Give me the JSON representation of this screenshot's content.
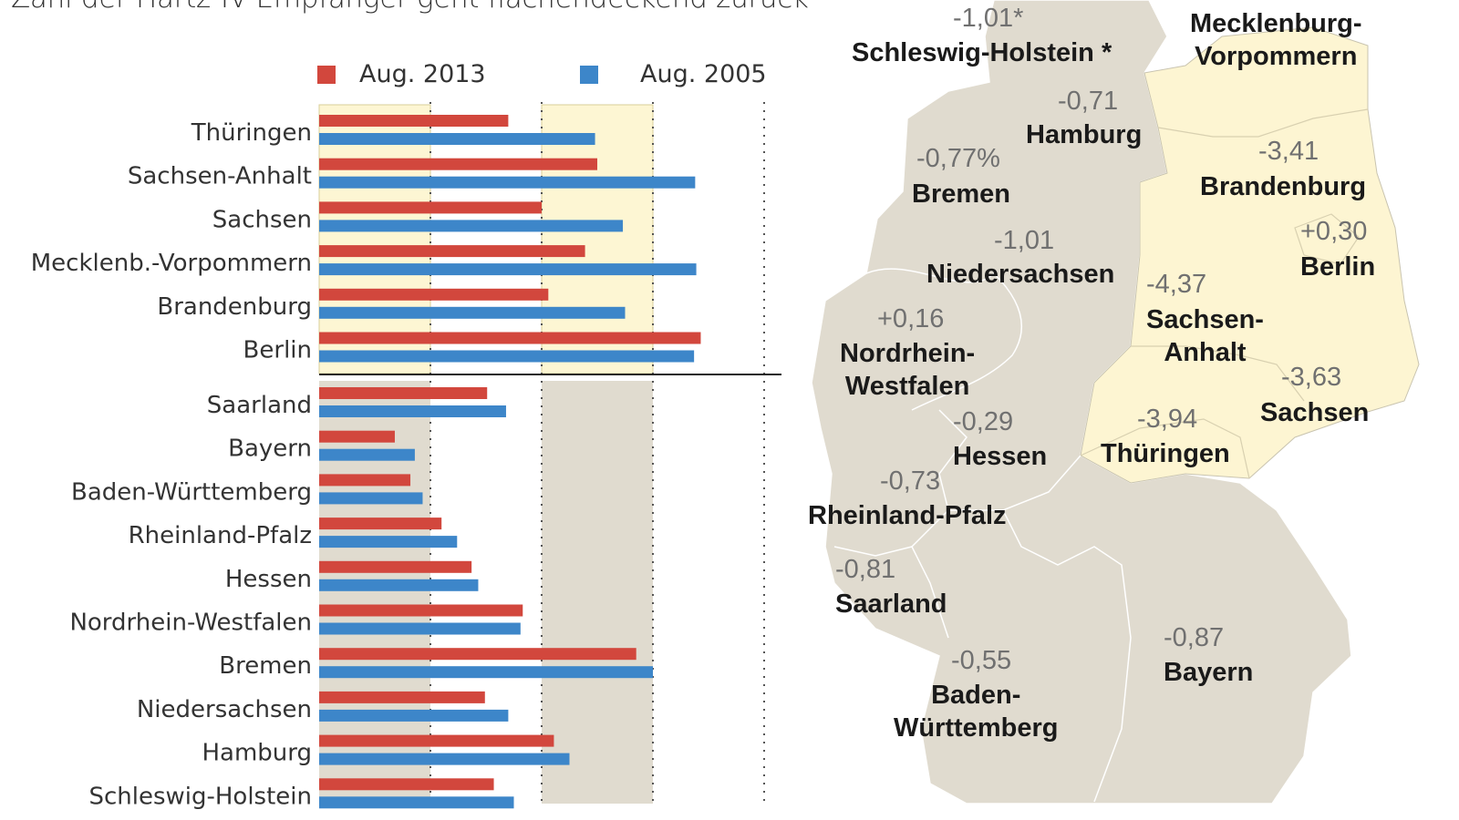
{
  "title": "Zahl der Hartz-IV-Empfänger geht flächendeckend zurück",
  "colors": {
    "aug2013": "#d2473d",
    "aug2005": "#3d86c9",
    "east_band": "#fdf6d3",
    "west_band": "#e0dbcf",
    "map_west": "#e0dbcf",
    "map_east": "#fdf5d2"
  },
  "chart_data": {
    "type": "bar",
    "orientation": "horizontal",
    "title": "",
    "xlabel": "",
    "ylabel": "",
    "xlim": [
      0,
      4
    ],
    "grid": true,
    "legend_position": "top",
    "groups": [
      {
        "categories": [
          "Thüringen",
          "Sachsen-Anhalt",
          "Sachsen",
          "Mecklenb.-Vorpommern",
          "Brandenburg",
          "Berlin"
        ],
        "series": [
          {
            "name": "Aug. 2013",
            "values": [
              1.7,
              2.5,
              2.0,
              2.39,
              2.06,
              3.43
            ]
          },
          {
            "name": "Aug. 2005",
            "values": [
              2.48,
              3.38,
              2.73,
              3.39,
              2.75,
              3.37
            ]
          }
        ]
      },
      {
        "categories": [
          "Saarland",
          "Bayern",
          "Baden-Württemberg",
          "Rheinland-Pfalz",
          "Hessen",
          "Nordrhein-Westfalen",
          "Bremen",
          "Niedersachsen",
          "Hamburg",
          "Schleswig-Holstein"
        ],
        "series": [
          {
            "name": "Aug. 2013",
            "values": [
              1.51,
              0.68,
              0.82,
              1.1,
              1.37,
              1.83,
              2.85,
              1.49,
              2.11,
              1.57
            ]
          },
          {
            "name": "Aug. 2005",
            "values": [
              1.68,
              0.86,
              0.93,
              1.24,
              1.43,
              1.81,
              3.0,
              1.7,
              2.25,
              1.75
            ]
          }
        ]
      }
    ]
  },
  "map": {
    "states": [
      {
        "name": "Schleswig-Holstein *",
        "change": "-1,01*"
      },
      {
        "name": "Mecklenburg-\nVorpommern",
        "change": ""
      },
      {
        "name": "Hamburg",
        "change": "-0,71"
      },
      {
        "name": "Bremen",
        "change": "-0,77%"
      },
      {
        "name": "Brandenburg",
        "change": "-3,41"
      },
      {
        "name": "Berlin",
        "change": "+0,30"
      },
      {
        "name": "Niedersachsen",
        "change": "-1,01"
      },
      {
        "name": "Sachsen-\nAnhalt",
        "change": "-4,37"
      },
      {
        "name": "Nordrhein-\nWestfalen",
        "change": "+0,16"
      },
      {
        "name": "Sachsen",
        "change": "-3,63"
      },
      {
        "name": "Hessen",
        "change": "-0,29"
      },
      {
        "name": "Thüringen",
        "change": "-3,94"
      },
      {
        "name": "Rheinland-Pfalz",
        "change": "-0,73"
      },
      {
        "name": "Saarland",
        "change": "-0,81"
      },
      {
        "name": "Bayern",
        "change": "-0,87"
      },
      {
        "name": "Baden-\nWürttemberg",
        "change": "-0,55"
      }
    ]
  }
}
